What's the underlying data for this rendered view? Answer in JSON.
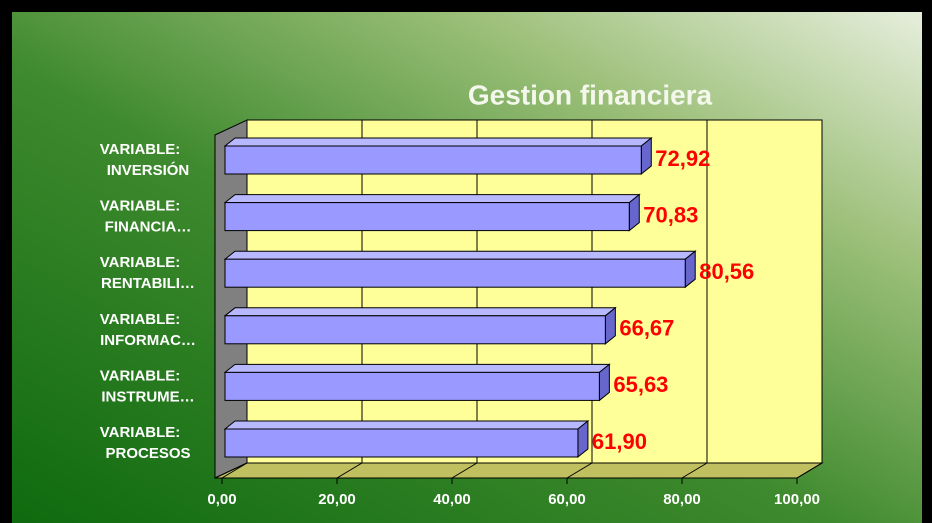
{
  "chart_data": {
    "type": "bar3d-horizontal",
    "title": "Gestion financiera",
    "categories": [
      [
        "VARIABLE:",
        "INVERSIÓN"
      ],
      [
        "VARIABLE:",
        "FINANCIA…"
      ],
      [
        "VARIABLE:",
        "RENTABILI…"
      ],
      [
        "VARIABLE:",
        "INFORMAC…"
      ],
      [
        "VARIABLE:",
        "INSTRUME…"
      ],
      [
        "VARIABLE:",
        "PROCESOS"
      ]
    ],
    "values": [
      72.92,
      70.83,
      80.56,
      66.67,
      65.63,
      61.9
    ],
    "value_labels": [
      "72,92",
      "70,83",
      "80,56",
      "66,67",
      "65,63",
      "61,90"
    ],
    "color": "#9999ff",
    "label_color": "#ff0000",
    "xlim": [
      0,
      100
    ],
    "xticks": [
      {
        "value": 0,
        "label": "0,00"
      },
      {
        "value": 20,
        "label": "20,00"
      },
      {
        "value": 40,
        "label": "40,00"
      },
      {
        "value": 60,
        "label": "60,00"
      },
      {
        "value": 80,
        "label": "80,00"
      },
      {
        "value": 100,
        "label": "100,00"
      }
    ],
    "grid": true
  }
}
